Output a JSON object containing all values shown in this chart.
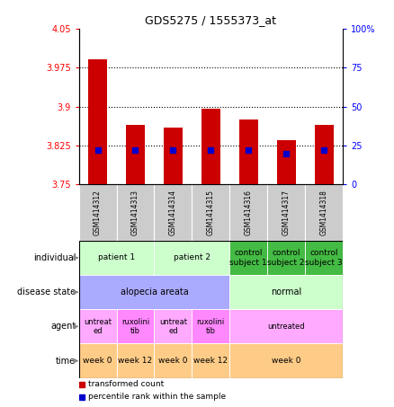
{
  "title": "GDS5275 / 1555373_at",
  "samples": [
    "GSM1414312",
    "GSM1414313",
    "GSM1414314",
    "GSM1414315",
    "GSM1414316",
    "GSM1414317",
    "GSM1414318"
  ],
  "transformed_counts": [
    3.99,
    3.865,
    3.86,
    3.895,
    3.875,
    3.835,
    3.865
  ],
  "percentile_ranks": [
    22,
    22,
    22,
    22,
    22,
    20,
    22
  ],
  "ylim_left": [
    3.75,
    4.05
  ],
  "ylim_right": [
    0,
    100
  ],
  "yticks_left": [
    3.75,
    3.825,
    3.9,
    3.975,
    4.05
  ],
  "yticks_right": [
    0,
    25,
    50,
    75,
    100
  ],
  "ytick_labels_left": [
    "3.75",
    "3.825",
    "3.9",
    "3.975",
    "4.05"
  ],
  "ytick_labels_right": [
    "0",
    "25",
    "50",
    "75",
    "100%"
  ],
  "hline_values": [
    3.975,
    3.9,
    3.825
  ],
  "bar_color": "#cc0000",
  "percentile_color": "#0000cc",
  "bar_width": 0.5,
  "sample_bg_color": "#cccccc",
  "individual_color_light": "#ccffcc",
  "individual_color_dark": "#44cc44",
  "disease_color_blue": "#aaaaff",
  "disease_color_green": "#ccffcc",
  "agent_color_pink": "#ffaaff",
  "agent_color_magenta": "#ff44ff",
  "time_color": "#ffcc88",
  "row_labels": [
    "individual",
    "disease state",
    "agent",
    "time"
  ],
  "indiv_items": [
    {
      "label": "patient 1",
      "span": [
        0,
        2
      ],
      "color": "#ccffcc"
    },
    {
      "label": "patient 2",
      "span": [
        2,
        4
      ],
      "color": "#ccffcc"
    },
    {
      "label": "control\nsubject 1",
      "span": [
        4,
        5
      ],
      "color": "#44bb44"
    },
    {
      "label": "control\nsubject 2",
      "span": [
        5,
        6
      ],
      "color": "#44bb44"
    },
    {
      "label": "control\nsubject 3",
      "span": [
        6,
        7
      ],
      "color": "#44bb44"
    }
  ],
  "disease_items": [
    {
      "label": "alopecia areata",
      "span": [
        0,
        4
      ],
      "color": "#aaaaff"
    },
    {
      "label": "normal",
      "span": [
        4,
        7
      ],
      "color": "#ccffcc"
    }
  ],
  "agent_items": [
    {
      "label": "untreat\ned",
      "span": [
        0,
        1
      ],
      "color": "#ffaaff"
    },
    {
      "label": "ruxolini\ntib",
      "span": [
        1,
        2
      ],
      "color": "#ff88ff"
    },
    {
      "label": "untreat\ned",
      "span": [
        2,
        3
      ],
      "color": "#ffaaff"
    },
    {
      "label": "ruxolini\ntib",
      "span": [
        3,
        4
      ],
      "color": "#ff88ff"
    },
    {
      "label": "untreated",
      "span": [
        4,
        7
      ],
      "color": "#ffaaff"
    }
  ],
  "time_items": [
    {
      "label": "week 0",
      "span": [
        0,
        1
      ],
      "color": "#ffcc88"
    },
    {
      "label": "week 12",
      "span": [
        1,
        2
      ],
      "color": "#ffcc88"
    },
    {
      "label": "week 0",
      "span": [
        2,
        3
      ],
      "color": "#ffcc88"
    },
    {
      "label": "week 12",
      "span": [
        3,
        4
      ],
      "color": "#ffcc88"
    },
    {
      "label": "week 0",
      "span": [
        4,
        7
      ],
      "color": "#ffcc88"
    }
  ]
}
